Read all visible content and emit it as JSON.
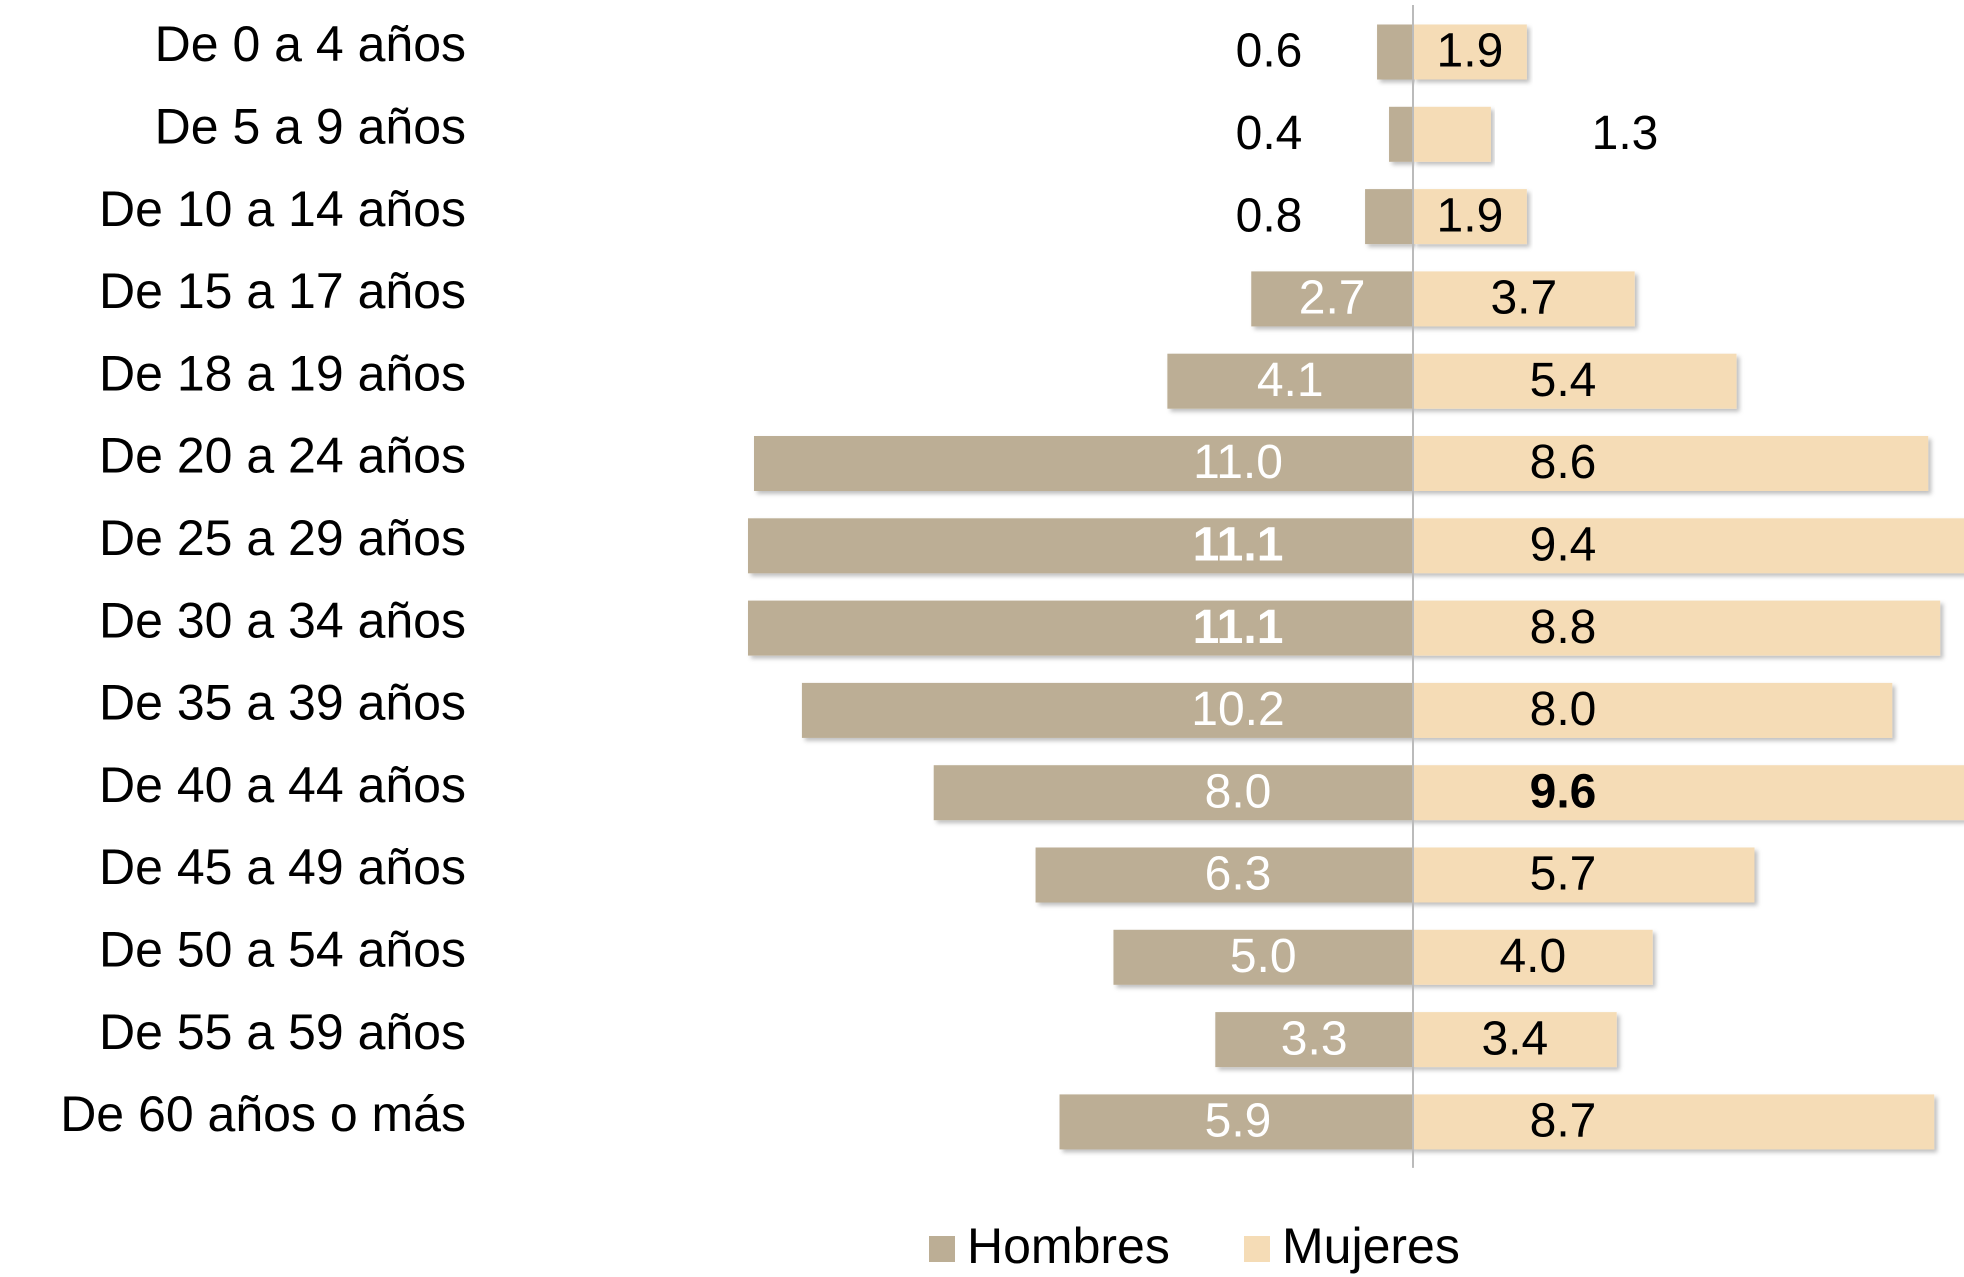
{
  "chart_data": {
    "type": "pyramid",
    "categories": [
      "De 0 a 4 años",
      "De 5 a 9 años",
      "De 10 a 14 años",
      "De 15 a 17 años",
      "De 18 a 19 años",
      "De 20 a 24 años",
      "De 25 a 29 años",
      "De 30 a 34 años",
      "De 35 a 39 años",
      "De 40 a 44 años",
      "De 45 a 49 años",
      "De 50 a 54 años",
      "De 55 a 59 años",
      "De 60 años o más"
    ],
    "series": [
      {
        "name": "Hombres",
        "color": "#bcae95",
        "side": "left",
        "values": [
          0.6,
          0.4,
          0.8,
          2.7,
          4.1,
          11.0,
          11.1,
          11.1,
          10.2,
          8.0,
          6.3,
          5.0,
          3.3,
          5.9
        ],
        "value_labels": [
          "0.6",
          "0.4",
          "0.8",
          "2.7",
          "4.1",
          "11.0",
          "11.1",
          "11.1",
          "10.2",
          "8.0",
          "6.3",
          "5.0",
          "3.3",
          "5.9"
        ],
        "bold_labels": [
          false,
          false,
          false,
          false,
          false,
          false,
          true,
          true,
          false,
          false,
          false,
          false,
          false,
          false
        ]
      },
      {
        "name": "Mujeres",
        "color": "#f5dcb6",
        "side": "right",
        "values": [
          1.9,
          1.3,
          1.9,
          3.7,
          5.4,
          8.6,
          9.4,
          8.8,
          8.0,
          9.6,
          5.7,
          4.0,
          3.4,
          8.7
        ],
        "value_labels": [
          "1.9",
          "1.3",
          "1.9",
          "3.7",
          "5.4",
          "8.6",
          "9.4",
          "8.8",
          "8.0",
          "9.6",
          "5.7",
          "4.0",
          "3.4",
          "8.7"
        ],
        "bold_labels": [
          false,
          false,
          false,
          false,
          false,
          false,
          false,
          false,
          false,
          true,
          false,
          false,
          false,
          false
        ]
      }
    ],
    "legend": "bottom"
  }
}
